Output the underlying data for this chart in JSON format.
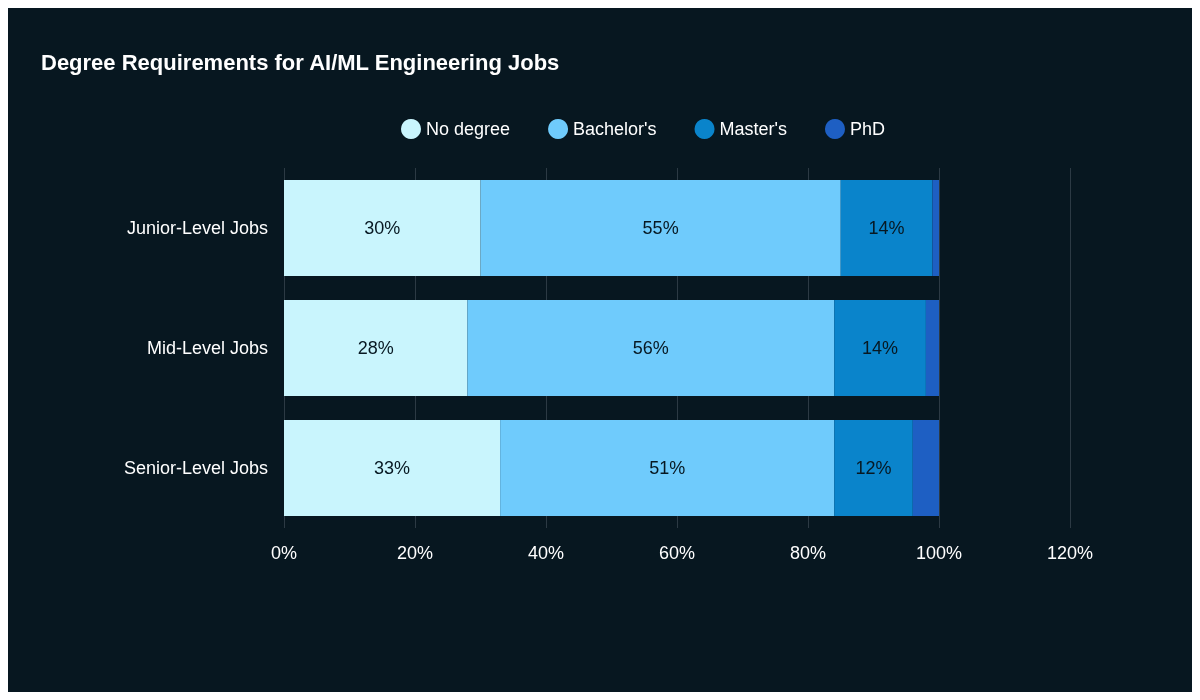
{
  "chart_data": {
    "type": "bar",
    "title": "Degree Requirements for AI/ML Engineering Jobs",
    "orientation": "horizontal",
    "stacked": true,
    "categories": [
      "Junior-Level Jobs",
      "Mid-Level Jobs",
      "Senior-Level Jobs"
    ],
    "series": [
      {
        "name": "No degree",
        "color": "#c9f5fd",
        "values": [
          30,
          28,
          33
        ],
        "value_labels": [
          "30%",
          "28%",
          "33%"
        ]
      },
      {
        "name": "Bachelor's",
        "color": "#6fcbfc",
        "values": [
          55,
          56,
          51
        ],
        "value_labels": [
          "55%",
          "56%",
          "51%"
        ]
      },
      {
        "name": "Master's",
        "color": "#0a84cb",
        "values": [
          14,
          14,
          12
        ],
        "value_labels": [
          "14%",
          "14%",
          "12%"
        ]
      },
      {
        "name": "PhD",
        "color": "#1e5fc3",
        "values": [
          1,
          2,
          4
        ]
      }
    ],
    "xlim": [
      0,
      120
    ],
    "xticks": [
      {
        "value": 0,
        "label": "0%"
      },
      {
        "value": 20,
        "label": "20%"
      },
      {
        "value": 40,
        "label": "40%"
      },
      {
        "value": 60,
        "label": "60%"
      },
      {
        "value": 80,
        "label": "80%"
      },
      {
        "value": 100,
        "label": "100%"
      },
      {
        "value": 120,
        "label": "120%"
      }
    ],
    "grid": "x",
    "legend": "top"
  }
}
